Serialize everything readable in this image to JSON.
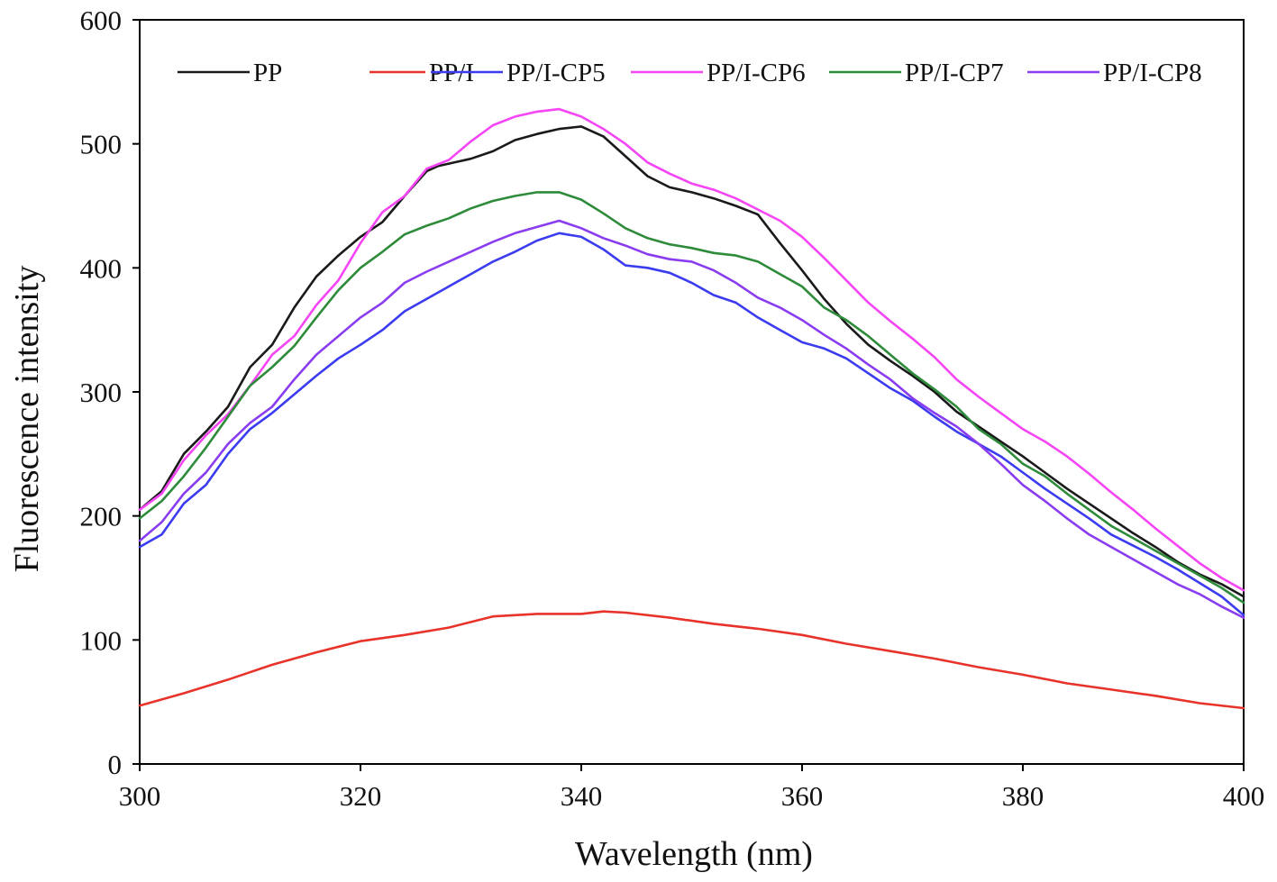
{
  "chart_data": {
    "type": "line",
    "title": "",
    "xlabel": "Wavelength (nm)",
    "ylabel": "Fluorescence intensity",
    "xlim": [
      300,
      400
    ],
    "ylim": [
      0,
      600
    ],
    "xticks": [
      300,
      320,
      340,
      360,
      380,
      400
    ],
    "yticks": [
      0,
      100,
      200,
      300,
      400,
      500,
      600
    ],
    "grid": false,
    "legend_position": "top",
    "series": [
      {
        "name": "PP",
        "color": "#1a1a1a",
        "x": [
          300,
          302,
          304,
          306,
          308,
          310,
          312,
          314,
          316,
          318,
          320,
          322,
          324,
          326,
          327,
          330,
          332,
          334,
          336,
          338,
          340,
          342,
          344,
          346,
          348,
          350,
          352,
          354,
          356,
          358,
          360,
          362,
          364,
          366,
          368,
          370,
          372,
          374,
          376,
          378,
          380,
          382,
          384,
          386,
          388,
          390,
          392,
          394,
          396,
          398,
          400
        ],
        "y": [
          205,
          220,
          250,
          268,
          288,
          320,
          338,
          368,
          393,
          410,
          425,
          437,
          458,
          478,
          482,
          488,
          494,
          503,
          508,
          512,
          514,
          506,
          490,
          474,
          465,
          461,
          456,
          450,
          443,
          420,
          398,
          375,
          355,
          338,
          325,
          313,
          300,
          284,
          272,
          260,
          248,
          235,
          222,
          210,
          198,
          186,
          175,
          163,
          153,
          145,
          135
        ]
      },
      {
        "name": "PP/I",
        "color": "#e8332b",
        "x": [
          300,
          304,
          308,
          312,
          316,
          320,
          324,
          328,
          332,
          336,
          340,
          342,
          344,
          348,
          352,
          356,
          360,
          364,
          368,
          372,
          376,
          380,
          384,
          388,
          392,
          396,
          400
        ],
        "y": [
          47,
          57,
          68,
          80,
          90,
          99,
          104,
          110,
          119,
          121,
          121,
          123,
          122,
          118,
          113,
          109,
          104,
          97,
          91,
          85,
          78,
          72,
          65,
          60,
          55,
          49,
          45
        ]
      },
      {
        "name": "PP/I-CP5",
        "color": "#3b3bf0",
        "x": [
          300,
          302,
          304,
          306,
          308,
          310,
          312,
          314,
          316,
          318,
          320,
          322,
          324,
          326,
          328,
          330,
          332,
          334,
          336,
          338,
          340,
          342,
          344,
          346,
          348,
          350,
          352,
          354,
          356,
          358,
          360,
          362,
          364,
          366,
          368,
          370,
          372,
          374,
          376,
          378,
          380,
          382,
          384,
          386,
          388,
          390,
          392,
          394,
          396,
          398,
          400
        ],
        "y": [
          175,
          185,
          210,
          225,
          250,
          270,
          283,
          298,
          313,
          327,
          338,
          350,
          365,
          375,
          385,
          395,
          405,
          413,
          422,
          428,
          425,
          415,
          402,
          400,
          396,
          388,
          378,
          372,
          360,
          350,
          340,
          335,
          327,
          315,
          303,
          293,
          280,
          268,
          258,
          248,
          235,
          222,
          210,
          198,
          185,
          176,
          167,
          157,
          146,
          135,
          120
        ]
      },
      {
        "name": "PP/I-CP6",
        "color": "#f545f5",
        "x": [
          300,
          302,
          304,
          306,
          308,
          310,
          312,
          314,
          316,
          318,
          320,
          322,
          324,
          326,
          328,
          330,
          332,
          334,
          336,
          338,
          340,
          342,
          344,
          346,
          348,
          350,
          352,
          354,
          356,
          358,
          360,
          362,
          364,
          366,
          368,
          370,
          372,
          374,
          376,
          378,
          380,
          382,
          384,
          386,
          388,
          390,
          392,
          394,
          396,
          398,
          400
        ],
        "y": [
          205,
          218,
          245,
          265,
          282,
          305,
          330,
          345,
          370,
          390,
          420,
          445,
          458,
          480,
          487,
          502,
          515,
          522,
          526,
          528,
          522,
          512,
          500,
          485,
          476,
          468,
          463,
          456,
          447,
          438,
          425,
          408,
          390,
          372,
          357,
          343,
          328,
          310,
          296,
          283,
          270,
          260,
          248,
          234,
          219,
          205,
          190,
          176,
          162,
          150,
          140
        ]
      },
      {
        "name": "PP/I-CP7",
        "color": "#2e8b3a",
        "x": [
          300,
          302,
          304,
          306,
          308,
          310,
          312,
          314,
          316,
          318,
          320,
          322,
          324,
          326,
          328,
          330,
          332,
          334,
          336,
          338,
          340,
          342,
          344,
          346,
          348,
          350,
          352,
          354,
          356,
          358,
          360,
          362,
          364,
          366,
          368,
          370,
          372,
          374,
          376,
          378,
          380,
          382,
          384,
          386,
          388,
          390,
          392,
          394,
          396,
          398,
          400
        ],
        "y": [
          198,
          212,
          232,
          255,
          280,
          305,
          320,
          337,
          360,
          382,
          400,
          413,
          427,
          434,
          440,
          448,
          454,
          458,
          461,
          461,
          455,
          444,
          432,
          424,
          419,
          416,
          412,
          410,
          405,
          395,
          385,
          368,
          358,
          345,
          330,
          315,
          302,
          288,
          270,
          258,
          242,
          232,
          218,
          205,
          192,
          182,
          172,
          162,
          152,
          142,
          130
        ]
      },
      {
        "name": "PP/I-CP8",
        "color": "#8a3cf0",
        "x": [
          300,
          302,
          304,
          306,
          308,
          310,
          312,
          314,
          316,
          318,
          320,
          322,
          324,
          326,
          328,
          330,
          332,
          334,
          336,
          338,
          340,
          342,
          344,
          346,
          348,
          350,
          352,
          354,
          356,
          358,
          360,
          362,
          364,
          366,
          368,
          370,
          372,
          374,
          376,
          378,
          380,
          382,
          384,
          386,
          388,
          390,
          392,
          394,
          396,
          398,
          400
        ],
        "y": [
          180,
          195,
          218,
          235,
          258,
          275,
          288,
          310,
          330,
          345,
          360,
          372,
          388,
          397,
          405,
          413,
          421,
          428,
          433,
          438,
          432,
          424,
          418,
          411,
          407,
          405,
          398,
          388,
          376,
          368,
          358,
          346,
          335,
          322,
          310,
          295,
          283,
          272,
          258,
          242,
          225,
          212,
          198,
          185,
          175,
          165,
          155,
          145,
          137,
          127,
          118
        ]
      }
    ]
  }
}
